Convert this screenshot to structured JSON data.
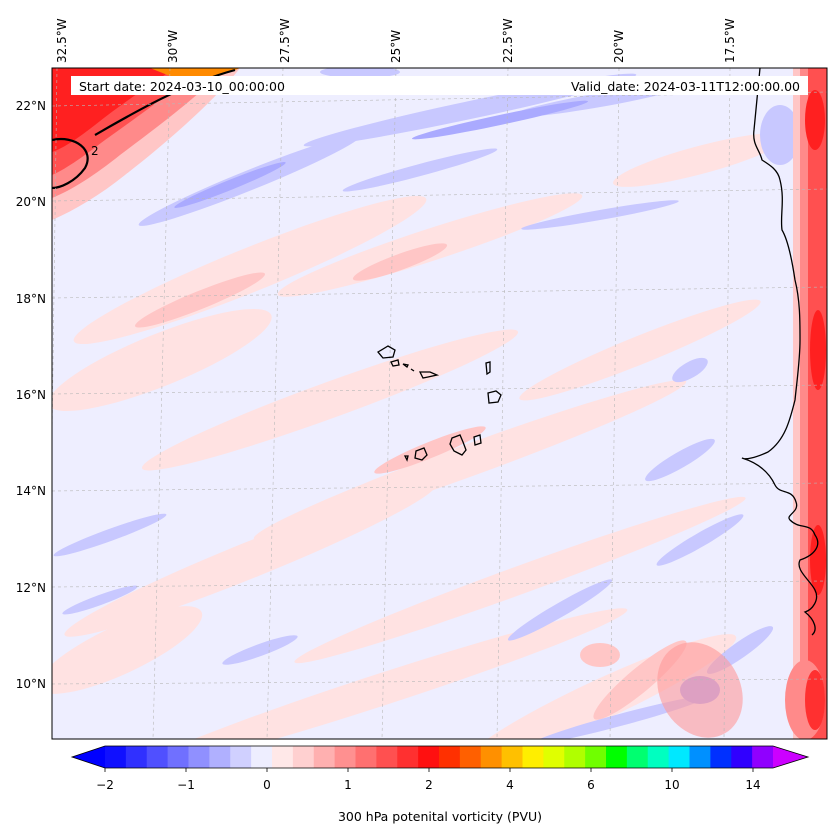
{
  "map": {
    "start_date": "Start date: 2024-03-10_00:00:00",
    "valid_date": "Valid_date: 2024-03-11T12:00:00.00",
    "lon_ticks": [
      "32.5°W",
      "30°W",
      "27.5°W",
      "25°W",
      "22.5°W",
      "20°W",
      "17.5°W"
    ],
    "lat_ticks": [
      "22°N",
      "20°N",
      "18°N",
      "16°N",
      "14°N",
      "12°N",
      "10°N"
    ],
    "contour_label": "2",
    "colors": {
      "background_field": "#eeeeff",
      "light_pink": "#ffe2e2",
      "pink": "#ffc6c6",
      "light_blue": "#c8c8ff",
      "blue": "#aaaaff",
      "red_strong": "#ff3030",
      "red_mid": "#ff6a6a",
      "coast": "#000000"
    }
  },
  "colorbar": {
    "title": "300 hPa potenital vorticity (PVU)",
    "tick_labels": [
      "−2",
      "−1",
      "0",
      "1",
      "2",
      "4",
      "6",
      "10",
      "14"
    ],
    "colors": [
      "#1010ff",
      "#3030ff",
      "#5050ff",
      "#7070ff",
      "#9090ff",
      "#b0b0ff",
      "#d0d0ff",
      "#eeeeff",
      "#ffe8e8",
      "#ffd0d0",
      "#ffb0b0",
      "#ff9090",
      "#ff7070",
      "#ff5050",
      "#ff3030",
      "#ff1010",
      "#ff3000",
      "#ff6000",
      "#ff9000",
      "#ffc000",
      "#ffee00",
      "#e0ff00",
      "#b0ff00",
      "#70ff00",
      "#00ff00",
      "#00ff70",
      "#00ffc0",
      "#00e8ff",
      "#0090ff",
      "#0030ff",
      "#3000ff",
      "#9000ff"
    ],
    "low_extend_color": "#0000ff",
    "high_extend_color": "#cc00ff"
  }
}
